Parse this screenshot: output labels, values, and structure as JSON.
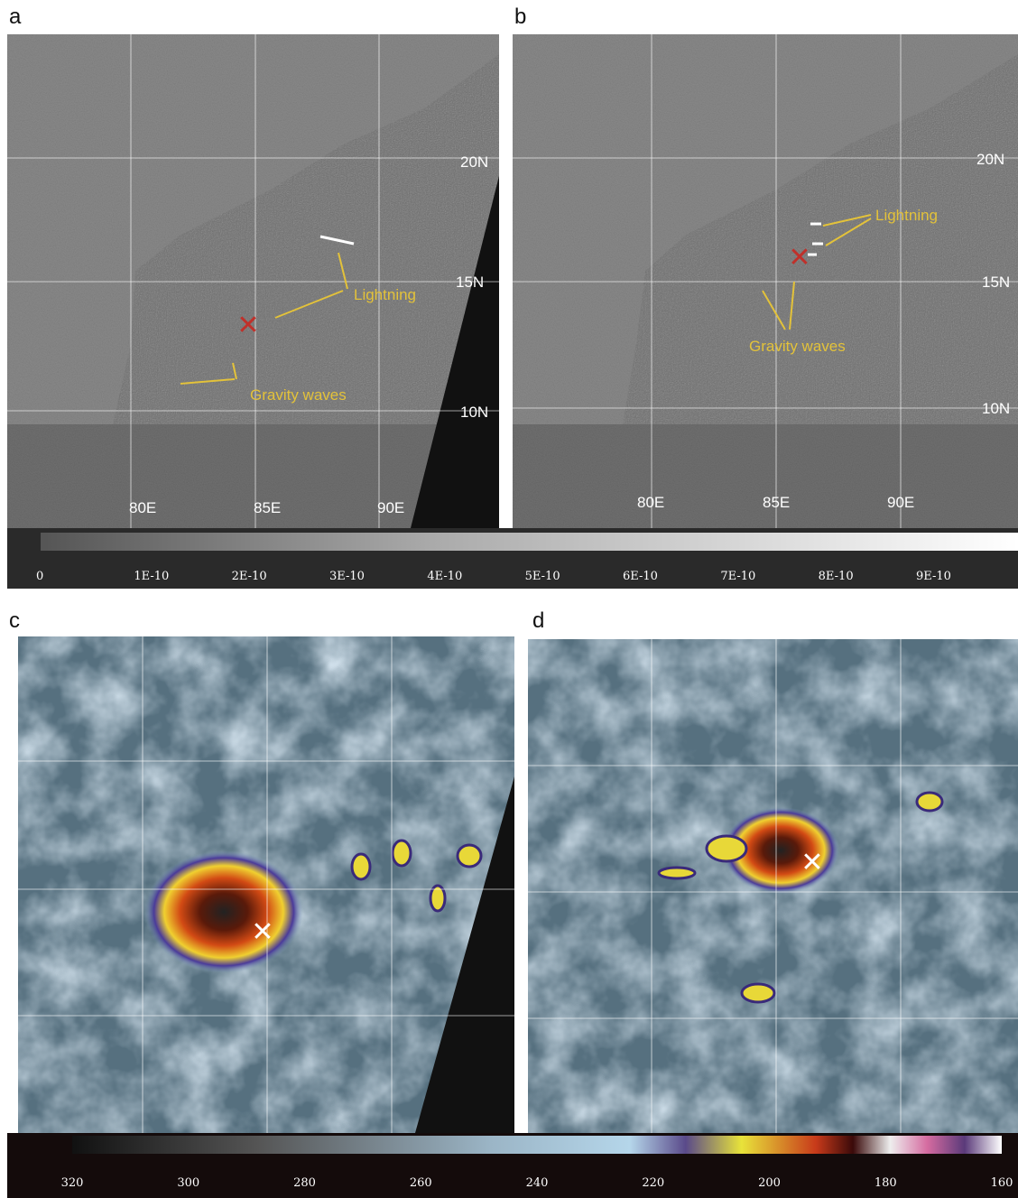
{
  "panels": [
    {
      "label": "a",
      "lat_labels": [
        "20N",
        "15N",
        "10N"
      ],
      "lon_labels": [
        "80E",
        "85E",
        "90E"
      ],
      "annotations": [
        "Lightning",
        "Gravity waves"
      ]
    },
    {
      "label": "b",
      "lat_labels": [
        "20N",
        "15N",
        "10N"
      ],
      "lon_labels": [
        "80E",
        "85E",
        "90E"
      ],
      "annotations": [
        "Lightning",
        "Gravity waves"
      ]
    },
    {
      "label": "c"
    },
    {
      "label": "d"
    }
  ],
  "colorbars": [
    {
      "tick_labels": [
        "0",
        "1E-10",
        "2E-10",
        "3E-10",
        "4E-10",
        "5E-10",
        "6E-10",
        "7E-10",
        "8E-10",
        "9E-10"
      ]
    },
    {
      "tick_labels": [
        "320",
        "300",
        "280",
        "260",
        "240",
        "220",
        "200",
        "180",
        "160"
      ]
    }
  ]
}
